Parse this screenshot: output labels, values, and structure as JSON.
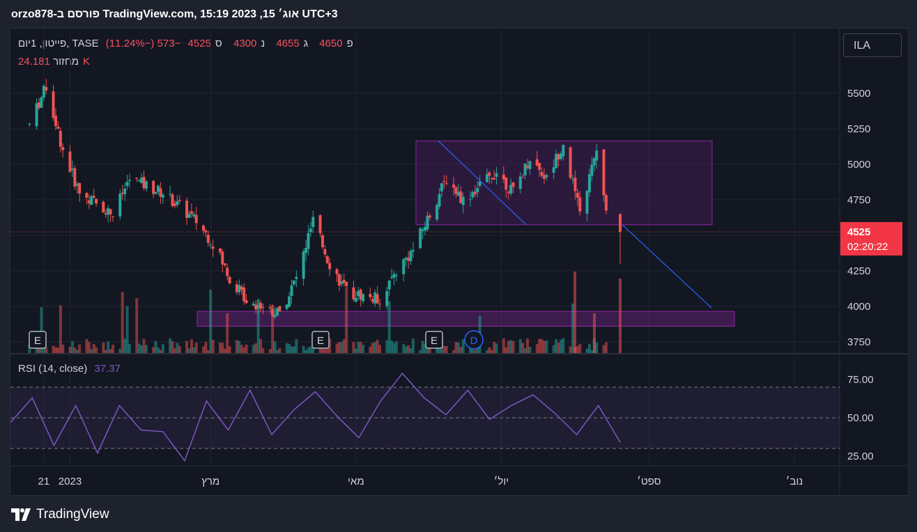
{
  "header": {
    "text": "orzo878-פורסם ב TradingView.com, 15:19 2023 ,15 אוג׳ UTC+3"
  },
  "symbol_button": "ILA",
  "legend": {
    "symbol": "פייטון, 1יום, TASE",
    "o_label": "פ",
    "o_value": "4650",
    "h_label": "ג",
    "h_value": "4655",
    "l_label": "נ",
    "l_value": "4300",
    "c_label": "ס",
    "c_value": "4525",
    "change": "−573 (−11.24%)",
    "volume_label": "מחזור",
    "volume_value": "24.181K"
  },
  "price_badge": {
    "price": "4525",
    "countdown": "02:20:22"
  },
  "rsi": {
    "label": "RSI (14, close)",
    "value": "37.37"
  },
  "colors": {
    "up": "#26a69a",
    "down": "#ef5350",
    "rsi": "#7e57c2",
    "zone": "#9c27b0",
    "trendline": "#2962ff"
  },
  "markers": {
    "earnings": "E",
    "dividend": "D"
  },
  "footer": {
    "brand": "TradingView",
    "logo_icon": "tradingview-logo-icon"
  },
  "chart_data": {
    "type": "candlestick",
    "y_ticks": [
      "5500",
      "5250",
      "5000",
      "4750",
      "4500",
      "4250",
      "4000",
      "3750"
    ],
    "x_ticks": [
      "21",
      "2023",
      "מרץ",
      "מאי",
      "יול׳",
      "ספט׳",
      "נוב׳"
    ],
    "ylim": [
      3700,
      5750
    ],
    "close_series_approx": [
      {
        "x": "2022-12-15",
        "close": 5280
      },
      {
        "x": "2022-12-22",
        "close": 5550
      },
      {
        "x": "2022-12-29",
        "close": 5100
      },
      {
        "x": "2023-01-05",
        "close": 4800
      },
      {
        "x": "2023-01-19",
        "close": 4650
      },
      {
        "x": "2023-01-26",
        "close": 4900
      },
      {
        "x": "2023-02-09",
        "close": 4800
      },
      {
        "x": "2023-02-23",
        "close": 4600
      },
      {
        "x": "2023-03-02",
        "close": 4450
      },
      {
        "x": "2023-03-09",
        "close": 4200
      },
      {
        "x": "2023-03-16",
        "close": 4050
      },
      {
        "x": "2023-03-30",
        "close": 3950
      },
      {
        "x": "2023-04-06",
        "close": 4200
      },
      {
        "x": "2023-04-13",
        "close": 4600
      },
      {
        "x": "2023-04-20",
        "close": 4300
      },
      {
        "x": "2023-04-27",
        "close": 4100
      },
      {
        "x": "2023-05-11",
        "close": 4050
      },
      {
        "x": "2023-05-18",
        "close": 4250
      },
      {
        "x": "2023-05-25",
        "close": 4400
      },
      {
        "x": "2023-06-08",
        "close": 4900
      },
      {
        "x": "2023-06-15",
        "close": 4750
      },
      {
        "x": "2023-06-22",
        "close": 4850
      },
      {
        "x": "2023-06-29",
        "close": 4950
      },
      {
        "x": "2023-07-06",
        "close": 4800
      },
      {
        "x": "2023-07-13",
        "close": 5050
      },
      {
        "x": "2023-07-20",
        "close": 4900
      },
      {
        "x": "2023-07-27",
        "close": 5150
      },
      {
        "x": "2023-08-03",
        "close": 4650
      },
      {
        "x": "2023-08-10",
        "close": 5100
      },
      {
        "x": "2023-08-15",
        "close": 4525
      }
    ],
    "rsi_levels": [
      "75.00",
      "50.00",
      "25.00"
    ],
    "rsi_ylim": [
      15,
      90
    ],
    "rsi_series_approx": [
      50,
      60,
      35,
      55,
      30,
      55,
      45,
      38,
      25,
      58,
      45,
      65,
      42,
      52,
      70,
      48,
      40,
      58,
      82,
      60,
      55,
      65,
      52,
      55,
      68,
      50,
      42,
      55,
      37
    ]
  }
}
